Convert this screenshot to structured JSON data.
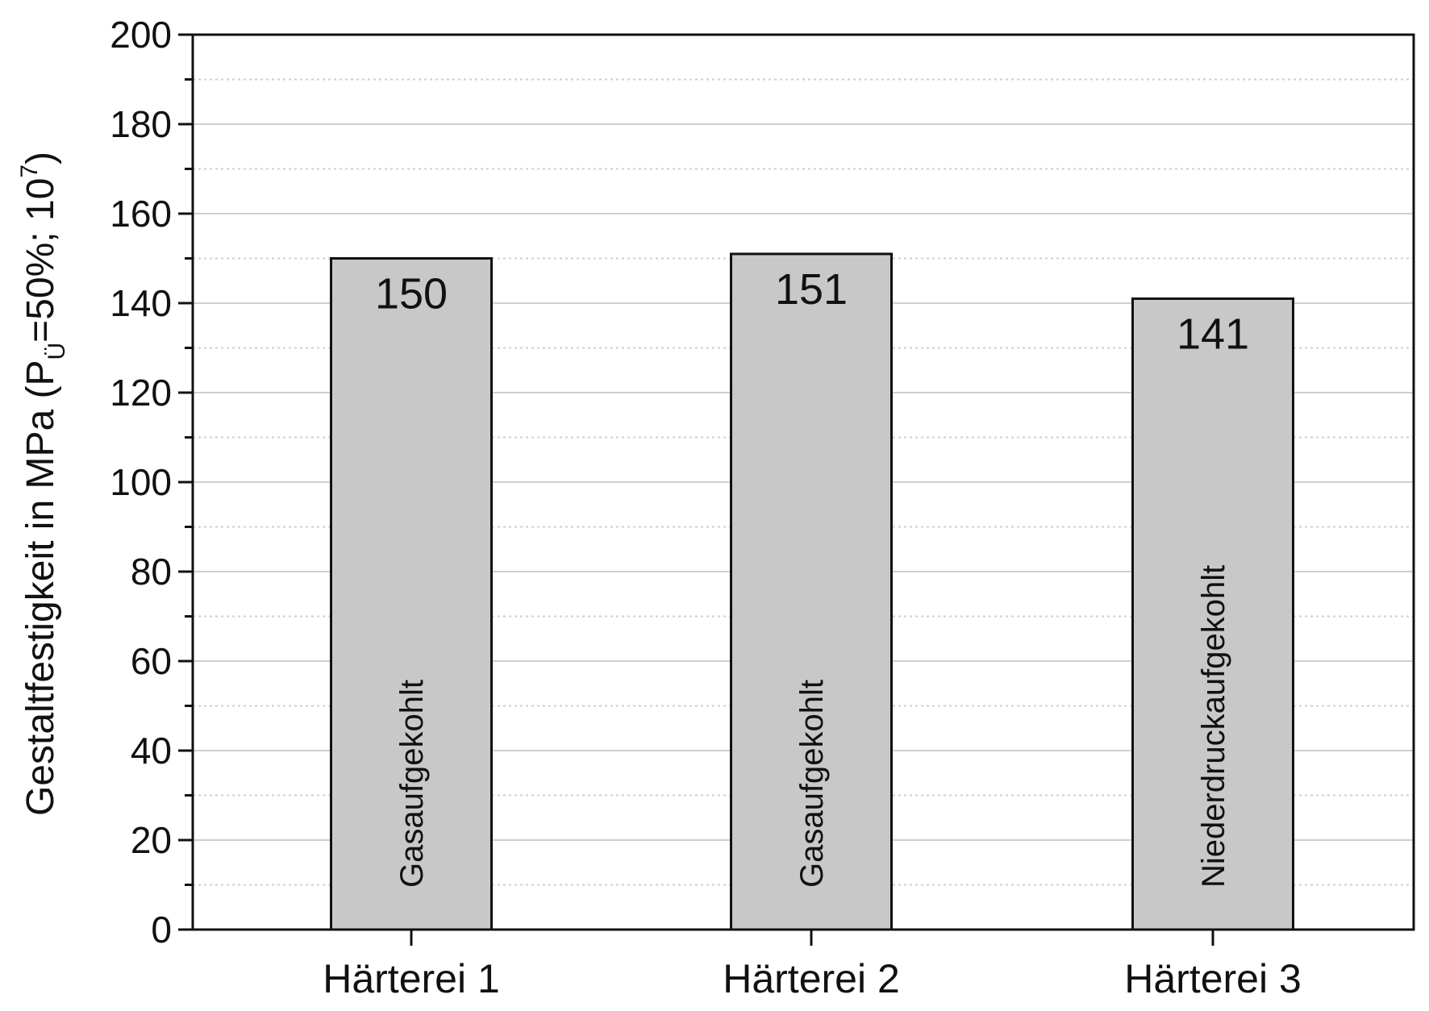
{
  "chart_data": {
    "type": "bar",
    "ylabel_parts": [
      "Gestaltfestigkeit in MPa (P",
      "Ü",
      "=50%; 10",
      "7",
      ")"
    ],
    "categories": [
      "Härterei 1",
      "Härterei 2",
      "Härterei 3"
    ],
    "values": [
      150,
      151,
      141
    ],
    "bar_labels": [
      "Gasaufgekohlt",
      "Gasaufgekohlt",
      "Niederdruckaufgekohlt"
    ],
    "color": "#c8c8c8",
    "ylim": [
      0,
      200
    ],
    "yticks": [
      0,
      20,
      40,
      60,
      80,
      100,
      120,
      140,
      160,
      180,
      200
    ],
    "minor_yticks": [
      10,
      30,
      50,
      70,
      90,
      110,
      130,
      150,
      170,
      190
    ],
    "grid": true
  }
}
